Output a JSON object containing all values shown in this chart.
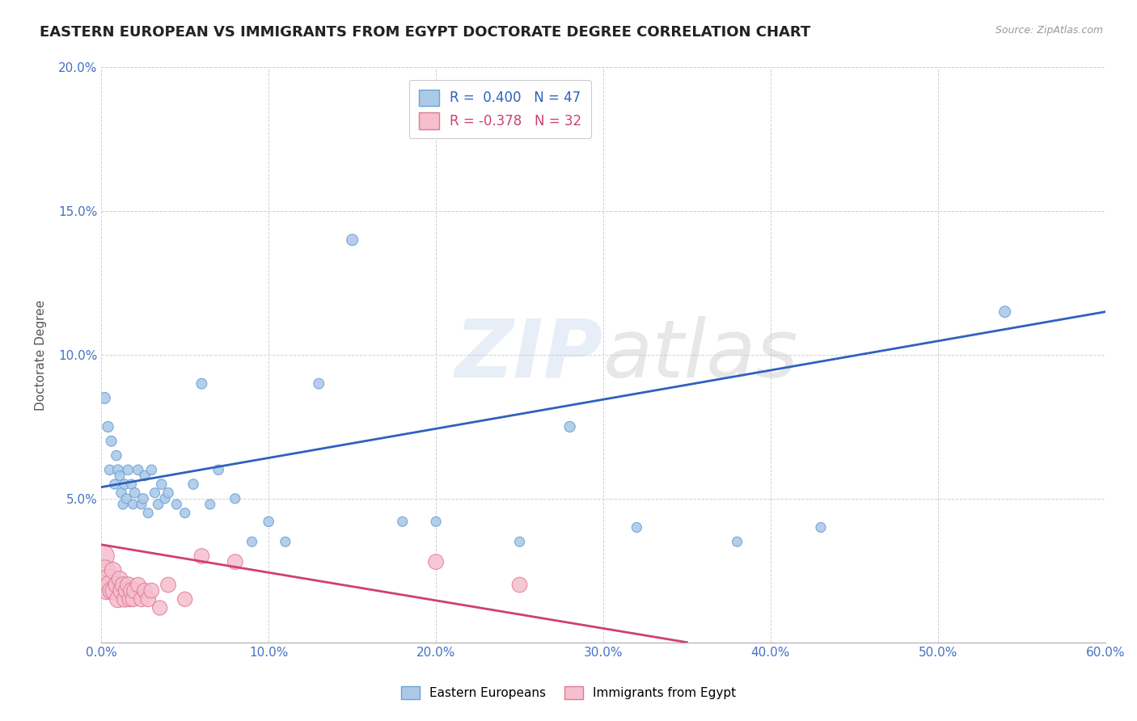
{
  "title": "EASTERN EUROPEAN VS IMMIGRANTS FROM EGYPT DOCTORATE DEGREE CORRELATION CHART",
  "source": "Source: ZipAtlas.com",
  "ylabel": "Doctorate Degree",
  "xlim": [
    0,
    0.6
  ],
  "ylim": [
    0,
    0.2
  ],
  "xticks": [
    0.0,
    0.1,
    0.2,
    0.3,
    0.4,
    0.5,
    0.6
  ],
  "yticks": [
    0.0,
    0.05,
    0.1,
    0.15,
    0.2
  ],
  "xtick_labels": [
    "0.0%",
    "10.0%",
    "20.0%",
    "30.0%",
    "40.0%",
    "50.0%",
    "60.0%"
  ],
  "ytick_labels": [
    "",
    "5.0%",
    "10.0%",
    "15.0%",
    "20.0%"
  ],
  "legend1_text": "R =  0.400   N = 47",
  "legend2_text": "R = -0.378   N = 32",
  "legend_label1": "Eastern Europeans",
  "legend_label2": "Immigrants from Egypt",
  "blue_color": "#adc9e8",
  "blue_edge": "#6aa3d4",
  "pink_color": "#f5bfce",
  "pink_edge": "#e07898",
  "blue_line_color": "#3060c0",
  "pink_line_color": "#d04070",
  "watermark": "ZIPatlas",
  "title_fontsize": 13,
  "axis_label_fontsize": 11,
  "tick_fontsize": 11,
  "blue_scatter_x": [
    0.002,
    0.004,
    0.005,
    0.006,
    0.008,
    0.009,
    0.01,
    0.011,
    0.012,
    0.013,
    0.014,
    0.015,
    0.016,
    0.018,
    0.019,
    0.02,
    0.022,
    0.024,
    0.025,
    0.026,
    0.028,
    0.03,
    0.032,
    0.034,
    0.036,
    0.038,
    0.04,
    0.045,
    0.05,
    0.055,
    0.06,
    0.065,
    0.07,
    0.08,
    0.09,
    0.1,
    0.11,
    0.13,
    0.15,
    0.18,
    0.2,
    0.25,
    0.28,
    0.32,
    0.38,
    0.43,
    0.54
  ],
  "blue_scatter_y": [
    0.085,
    0.075,
    0.06,
    0.07,
    0.055,
    0.065,
    0.06,
    0.058,
    0.052,
    0.048,
    0.055,
    0.05,
    0.06,
    0.055,
    0.048,
    0.052,
    0.06,
    0.048,
    0.05,
    0.058,
    0.045,
    0.06,
    0.052,
    0.048,
    0.055,
    0.05,
    0.052,
    0.048,
    0.045,
    0.055,
    0.09,
    0.048,
    0.06,
    0.05,
    0.035,
    0.042,
    0.035,
    0.09,
    0.14,
    0.042,
    0.042,
    0.035,
    0.075,
    0.04,
    0.035,
    0.04,
    0.115
  ],
  "blue_scatter_size": [
    100,
    90,
    80,
    85,
    75,
    80,
    85,
    75,
    80,
    75,
    80,
    75,
    80,
    75,
    70,
    80,
    80,
    75,
    80,
    80,
    75,
    80,
    75,
    80,
    80,
    75,
    80,
    75,
    75,
    80,
    85,
    75,
    80,
    75,
    75,
    80,
    75,
    85,
    100,
    75,
    75,
    75,
    90,
    75,
    75,
    75,
    100
  ],
  "pink_scatter_x": [
    0.001,
    0.002,
    0.003,
    0.004,
    0.005,
    0.006,
    0.007,
    0.008,
    0.009,
    0.01,
    0.011,
    0.012,
    0.013,
    0.014,
    0.015,
    0.016,
    0.017,
    0.018,
    0.019,
    0.02,
    0.022,
    0.024,
    0.026,
    0.028,
    0.03,
    0.035,
    0.04,
    0.05,
    0.06,
    0.08,
    0.2,
    0.25
  ],
  "pink_scatter_y": [
    0.03,
    0.025,
    0.018,
    0.022,
    0.02,
    0.018,
    0.025,
    0.018,
    0.02,
    0.015,
    0.022,
    0.018,
    0.02,
    0.015,
    0.018,
    0.02,
    0.015,
    0.018,
    0.015,
    0.018,
    0.02,
    0.015,
    0.018,
    0.015,
    0.018,
    0.012,
    0.02,
    0.015,
    0.03,
    0.028,
    0.028,
    0.02
  ],
  "pink_scatter_size": [
    400,
    350,
    250,
    300,
    280,
    250,
    220,
    280,
    200,
    220,
    200,
    220,
    200,
    200,
    200,
    200,
    180,
    200,
    180,
    200,
    180,
    180,
    180,
    180,
    180,
    170,
    180,
    170,
    180,
    180,
    180,
    180
  ],
  "blue_trend_x": [
    0.0,
    0.6
  ],
  "blue_trend_y": [
    0.054,
    0.115
  ],
  "pink_trend_x": [
    0.0,
    0.35
  ],
  "pink_trend_y": [
    0.034,
    0.0
  ]
}
